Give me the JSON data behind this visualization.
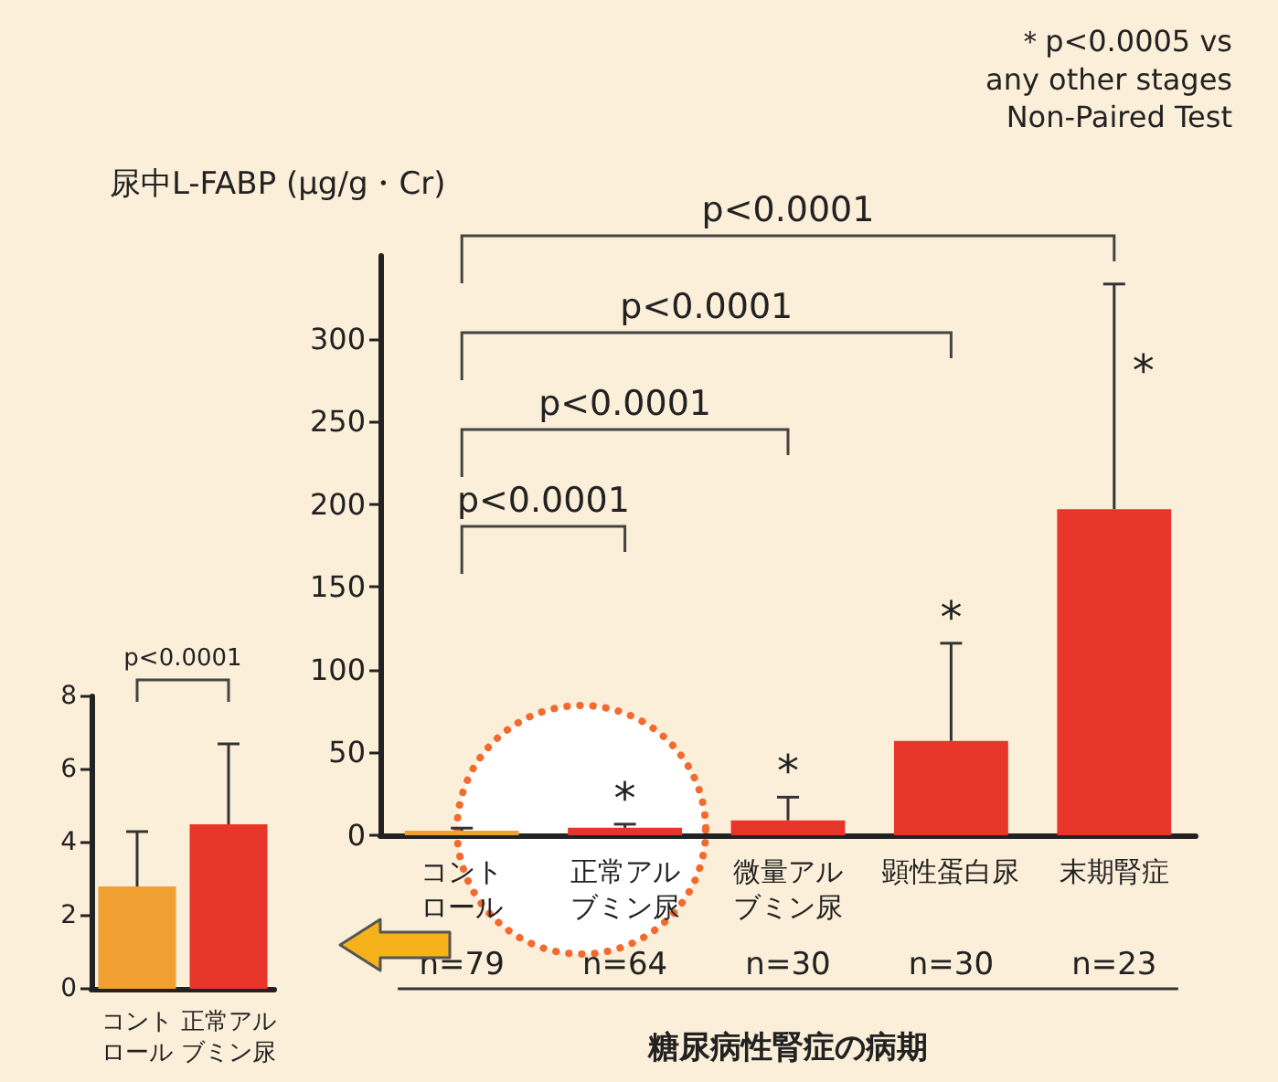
{
  "chart_data": [
    {
      "type": "bar",
      "ylabel": "尿中L-FABP (μg/g・Cr)",
      "xlabel": "糖尿病性腎症の病期",
      "categories": [
        "コントロール",
        "正常アルブミン尿",
        "微量アルブミン尿",
        "顕性蛋白尿",
        "末期腎症"
      ],
      "values": [
        2.8,
        4.5,
        9,
        57,
        197
      ],
      "errors": [
        [
          2.8,
          4.3
        ],
        [
          4.5,
          6.7
        ],
        [
          9,
          23
        ],
        [
          57,
          116
        ],
        [
          197,
          333
        ]
      ],
      "colors": [
        "#f0a030",
        "#e8352a",
        "#e8352a",
        "#e8352a",
        "#e8352a"
      ],
      "value_labels": [
        null,
        "*",
        "*",
        "*",
        "*"
      ],
      "ylim": [
        0,
        350
      ],
      "yticks": [
        0,
        50,
        100,
        150,
        200,
        250,
        300
      ],
      "annotations": [
        "＊p<0.0005 vs\nany other stages\nNon-Paired Test",
        "p<0.0001",
        "p<0.0001",
        "p<0.0001",
        "p<0.0001",
        "n=79",
        "n=64",
        "n=30",
        "n=30",
        "n=23"
      ]
    },
    {
      "type": "bar",
      "categories": [
        "コントロール",
        "正常アルブミン尿"
      ],
      "values": [
        2.8,
        4.5
      ],
      "errors": [
        [
          2.8,
          4.3
        ],
        [
          4.5,
          6.7
        ]
      ],
      "colors": [
        "#f0a030",
        "#e8352a"
      ],
      "ylim": [
        0,
        8
      ],
      "yticks": [
        0,
        2,
        4,
        6,
        8
      ],
      "annotations": [
        "p<0.0001"
      ]
    }
  ]
}
